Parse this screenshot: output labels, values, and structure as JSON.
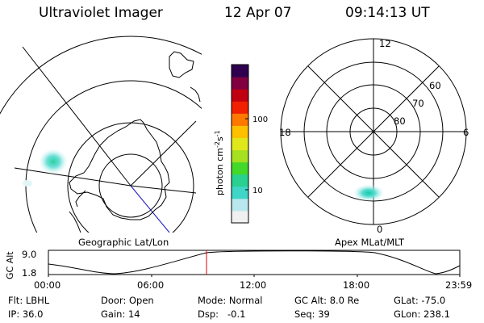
{
  "header": {
    "instrument": "Ultraviolet Imager",
    "date": "12 Apr 07",
    "time": "09:14:13 UT"
  },
  "colorbar": {
    "unit_label": "photon cm",
    "unit_exp1": "-2",
    "unit_s": "s",
    "unit_exp2": "-1",
    "ticks": [
      {
        "label": "100",
        "value": 100
      },
      {
        "label": "10",
        "value": 10
      }
    ],
    "colors": [
      "#f0f0f0",
      "#b8e8ee",
      "#3fd6c8",
      "#2ad090",
      "#44d82a",
      "#a6e020",
      "#e0e81c",
      "#ffc000",
      "#ff7800",
      "#f02000",
      "#c00010",
      "#800040",
      "#300050"
    ]
  },
  "geo_panel": {
    "label": "Geographic Lat/Lon"
  },
  "polar_panel": {
    "label": "Apex MLat/MLT",
    "mlt_labels": [
      {
        "label": "12",
        "pos": "top"
      },
      {
        "label": "18",
        "pos": "left"
      },
      {
        "label": "6",
        "pos": "right"
      },
      {
        "label": "0",
        "pos": "bottom"
      }
    ],
    "lat_labels": [
      "60",
      "70",
      "80"
    ]
  },
  "altitude_plot": {
    "ylabel": "GC Alt",
    "y_ticks": [
      "9.0",
      "1.8"
    ],
    "x_ticks": [
      "00:00",
      "06:00",
      "12:00",
      "18:00",
      "23:59"
    ],
    "current_time_marker": "09:14:13"
  },
  "info": {
    "filter_label": "Flt:",
    "filter_value": "LBHL",
    "door_label": "Door:",
    "door_value": "Open",
    "mode_label": "Mode:",
    "mode_value": "Normal",
    "gcalt_label": "GC Alt:",
    "gcalt_value": "8.0 Re",
    "glat_label": "GLat:",
    "glat_value": "-75.0",
    "ip_label": "IP:",
    "ip_value": "36.0",
    "gain_label": "Gain:",
    "gain_value": "14",
    "dsp_label": "Dsp:",
    "dsp_value": "-0.1",
    "seq_label": "Seq:",
    "seq_value": "39",
    "glon_label": "GLon:",
    "glon_value": "238.1"
  }
}
